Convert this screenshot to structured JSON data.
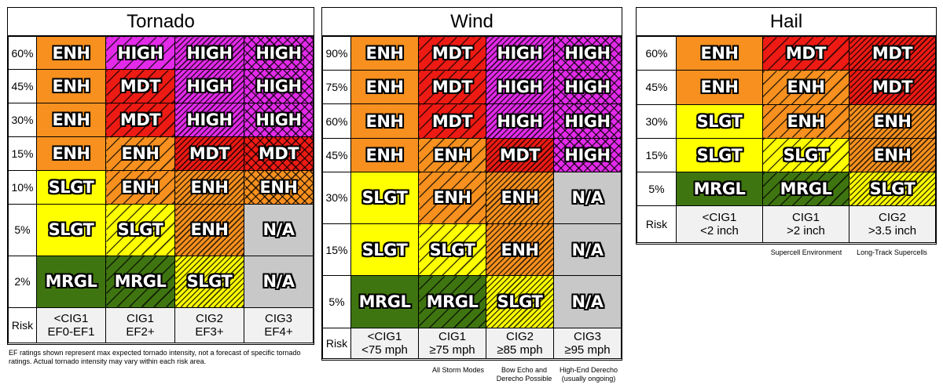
{
  "tornado": {
    "title": "Tornado",
    "risk_label": "Risk",
    "rows": [
      "60%",
      "45%",
      "30%",
      "15%",
      "10%",
      "5%",
      "2%"
    ],
    "cols": [
      {
        "line1": "<CIG1",
        "line2": "EF0-EF1"
      },
      {
        "line1": "CIG1",
        "line2": "EF2+"
      },
      {
        "line1": "CIG2",
        "line2": "EF3+"
      },
      {
        "line1": "CIG3",
        "line2": "EF4+"
      }
    ],
    "cells": [
      [
        {
          "t": "ENH",
          "c": "enh",
          "h": "none"
        },
        {
          "t": "HIGH",
          "c": "high",
          "h": "s"
        },
        {
          "t": "HIGH",
          "c": "high",
          "h": "d"
        },
        {
          "t": "HIGH",
          "c": "high",
          "h": "x"
        }
      ],
      [
        {
          "t": "ENH",
          "c": "enh",
          "h": "none"
        },
        {
          "t": "MDT",
          "c": "mdt",
          "h": "s"
        },
        {
          "t": "HIGH",
          "c": "high",
          "h": "d"
        },
        {
          "t": "HIGH",
          "c": "high",
          "h": "x"
        }
      ],
      [
        {
          "t": "ENH",
          "c": "enh",
          "h": "none"
        },
        {
          "t": "MDT",
          "c": "mdt",
          "h": "s"
        },
        {
          "t": "HIGH",
          "c": "high",
          "h": "d"
        },
        {
          "t": "HIGH",
          "c": "high",
          "h": "x"
        }
      ],
      [
        {
          "t": "ENH",
          "c": "enh",
          "h": "none"
        },
        {
          "t": "ENH",
          "c": "enh",
          "h": "s"
        },
        {
          "t": "MDT",
          "c": "mdt",
          "h": "d"
        },
        {
          "t": "MDT",
          "c": "mdt",
          "h": "x"
        }
      ],
      [
        {
          "t": "SLGT",
          "c": "slgt",
          "h": "none"
        },
        {
          "t": "ENH",
          "c": "enh",
          "h": "s"
        },
        {
          "t": "ENH",
          "c": "enh",
          "h": "d"
        },
        {
          "t": "ENH",
          "c": "enh",
          "h": "x"
        }
      ],
      [
        {
          "t": "SLGT",
          "c": "slgt",
          "h": "none"
        },
        {
          "t": "SLGT",
          "c": "slgt",
          "h": "s"
        },
        {
          "t": "ENH",
          "c": "enh",
          "h": "d"
        },
        {
          "t": "N/A",
          "c": "na",
          "h": "none"
        }
      ],
      [
        {
          "t": "MRGL",
          "c": "mrgl",
          "h": "none"
        },
        {
          "t": "MRGL",
          "c": "mrgl",
          "h": "s"
        },
        {
          "t": "SLGT",
          "c": "slgt",
          "h": "d"
        },
        {
          "t": "N/A",
          "c": "na",
          "h": "none"
        }
      ]
    ],
    "note": "EF ratings shown represent max expected tornado intensity, not a forecast of specific tornado ratings. Actual tornado intensity may vary within each risk area."
  },
  "wind": {
    "title": "Wind",
    "risk_label": "Risk",
    "rows": [
      "90%",
      "75%",
      "60%",
      "45%",
      "30%",
      "15%",
      "5%"
    ],
    "cols": [
      {
        "line1": "<CIG1",
        "line2": "<75 mph"
      },
      {
        "line1": "CIG1",
        "line2": "≥75 mph"
      },
      {
        "line1": "CIG2",
        "line2": "≥85 mph"
      },
      {
        "line1": "CIG3",
        "line2": "≥95 mph"
      }
    ],
    "cells": [
      [
        {
          "t": "ENH",
          "c": "enh",
          "h": "none"
        },
        {
          "t": "MDT",
          "c": "mdt",
          "h": "s"
        },
        {
          "t": "HIGH",
          "c": "high",
          "h": "d"
        },
        {
          "t": "HIGH",
          "c": "high",
          "h": "x"
        }
      ],
      [
        {
          "t": "ENH",
          "c": "enh",
          "h": "none"
        },
        {
          "t": "MDT",
          "c": "mdt",
          "h": "s"
        },
        {
          "t": "HIGH",
          "c": "high",
          "h": "d"
        },
        {
          "t": "HIGH",
          "c": "high",
          "h": "x"
        }
      ],
      [
        {
          "t": "ENH",
          "c": "enh",
          "h": "none"
        },
        {
          "t": "MDT",
          "c": "mdt",
          "h": "s"
        },
        {
          "t": "HIGH",
          "c": "high",
          "h": "d"
        },
        {
          "t": "HIGH",
          "c": "high",
          "h": "x"
        }
      ],
      [
        {
          "t": "ENH",
          "c": "enh",
          "h": "none"
        },
        {
          "t": "ENH",
          "c": "enh",
          "h": "s"
        },
        {
          "t": "MDT",
          "c": "mdt",
          "h": "d"
        },
        {
          "t": "HIGH",
          "c": "high",
          "h": "x"
        }
      ],
      [
        {
          "t": "SLGT",
          "c": "slgt",
          "h": "none"
        },
        {
          "t": "ENH",
          "c": "enh",
          "h": "s"
        },
        {
          "t": "ENH",
          "c": "enh",
          "h": "d"
        },
        {
          "t": "N/A",
          "c": "na",
          "h": "none"
        }
      ],
      [
        {
          "t": "SLGT",
          "c": "slgt",
          "h": "none"
        },
        {
          "t": "SLGT",
          "c": "slgt",
          "h": "s"
        },
        {
          "t": "ENH",
          "c": "enh",
          "h": "d"
        },
        {
          "t": "N/A",
          "c": "na",
          "h": "none"
        }
      ],
      [
        {
          "t": "MRGL",
          "c": "mrgl",
          "h": "none"
        },
        {
          "t": "MRGL",
          "c": "mrgl",
          "h": "s"
        },
        {
          "t": "SLGT",
          "c": "slgt",
          "h": "d"
        },
        {
          "t": "N/A",
          "c": "na",
          "h": "none"
        }
      ]
    ],
    "footnotes": [
      {
        "line1": "All Storm Modes",
        "line2": ""
      },
      {
        "line1": "Bow Echo and",
        "line2": "Derecho Possible"
      },
      {
        "line1": "High-End Derecho",
        "line2": "(usually ongoing)"
      }
    ]
  },
  "hail": {
    "title": "Hail",
    "risk_label": "Risk",
    "rows": [
      "60%",
      "45%",
      "30%",
      "15%",
      "5%"
    ],
    "cols": [
      {
        "line1": "<CIG1",
        "line2": "<2 inch"
      },
      {
        "line1": "CIG1",
        "line2": ">2 inch"
      },
      {
        "line1": "CIG2",
        "line2": ">3.5 inch"
      }
    ],
    "cells": [
      [
        {
          "t": "ENH",
          "c": "enh",
          "h": "none"
        },
        {
          "t": "MDT",
          "c": "mdt",
          "h": "s"
        },
        {
          "t": "MDT",
          "c": "mdt",
          "h": "d"
        }
      ],
      [
        {
          "t": "ENH",
          "c": "enh",
          "h": "none"
        },
        {
          "t": "ENH",
          "c": "enh",
          "h": "s"
        },
        {
          "t": "MDT",
          "c": "mdt",
          "h": "d"
        }
      ],
      [
        {
          "t": "SLGT",
          "c": "slgt",
          "h": "none"
        },
        {
          "t": "ENH",
          "c": "enh",
          "h": "s"
        },
        {
          "t": "ENH",
          "c": "enh",
          "h": "d"
        }
      ],
      [
        {
          "t": "SLGT",
          "c": "slgt",
          "h": "none"
        },
        {
          "t": "SLGT",
          "c": "slgt",
          "h": "s"
        },
        {
          "t": "ENH",
          "c": "enh",
          "h": "d"
        }
      ],
      [
        {
          "t": "MRGL",
          "c": "mrgl",
          "h": "none"
        },
        {
          "t": "MRGL",
          "c": "mrgl",
          "h": "s"
        },
        {
          "t": "SLGT",
          "c": "slgt",
          "h": "d"
        }
      ]
    ],
    "footnotes": [
      {
        "line1": "Supercell Environment"
      },
      {
        "line1": "Long-Track Supercells"
      }
    ]
  },
  "colors": {
    "mrgl": "#3f7510",
    "slgt": "#ffff00",
    "enh": "#f7901e",
    "mdt": "#ee1a14",
    "high": "#e32ae9",
    "na": "#c8c8c8"
  }
}
